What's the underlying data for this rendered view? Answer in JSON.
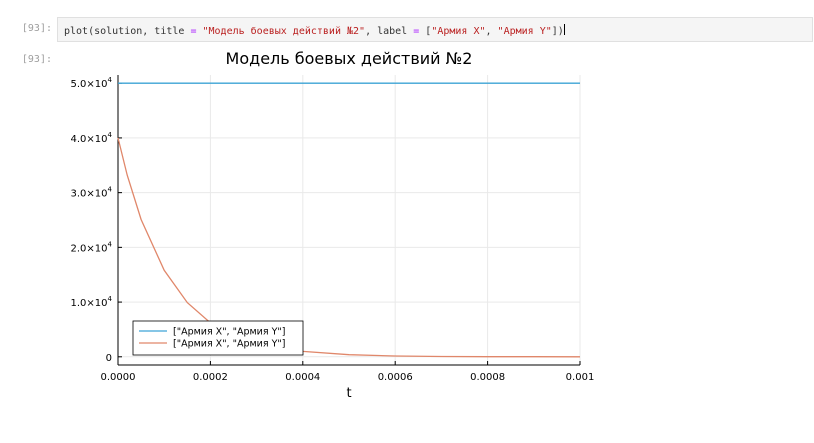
{
  "notebook": {
    "input_prompt": "[93]:",
    "output_prompt": "[93]:",
    "code_tokens": [
      {
        "text": "plot(solution, title ",
        "kind": "plain"
      },
      {
        "text": "=",
        "kind": "op"
      },
      {
        "text": " ",
        "kind": "plain"
      },
      {
        "text": "\"Модель боевых действий №2\"",
        "kind": "str"
      },
      {
        "text": ", label ",
        "kind": "plain"
      },
      {
        "text": "=",
        "kind": "op"
      },
      {
        "text": " [",
        "kind": "plain"
      },
      {
        "text": "\"Армия X\"",
        "kind": "str"
      },
      {
        "text": ", ",
        "kind": "plain"
      },
      {
        "text": "\"Армия Y\"",
        "kind": "str"
      },
      {
        "text": "])",
        "kind": "plain"
      }
    ]
  },
  "chart_data": {
    "type": "line",
    "title": "Модель боевых действий №2",
    "xlabel": "t",
    "ylabel": "",
    "xlim": [
      0,
      0.001
    ],
    "ylim": [
      -1500,
      51500
    ],
    "x_ticks": [
      "0.0000",
      "0.0002",
      "0.0004",
      "0.0006",
      "0.0008",
      "0.001"
    ],
    "x_tick_values": [
      0,
      0.0002,
      0.0004,
      0.0006,
      0.0008,
      0.001
    ],
    "y_tick_values": [
      0,
      10000,
      20000,
      30000,
      40000,
      50000
    ],
    "y_ticks": [
      {
        "mantissa": "0",
        "exp": ""
      },
      {
        "mantissa": "1.0×10",
        "exp": "4"
      },
      {
        "mantissa": "2.0×10",
        "exp": "4"
      },
      {
        "mantissa": "3.0×10",
        "exp": "4"
      },
      {
        "mantissa": "4.0×10",
        "exp": "4"
      },
      {
        "mantissa": "5.0×10",
        "exp": "4"
      }
    ],
    "grid": true,
    "legend_position": "bottom-left",
    "series": [
      {
        "name": "[\"Армия X\", \"Армия Y\"]",
        "color": "#3da4d6",
        "x": [
          0,
          0.0001,
          0.0002,
          0.0003,
          0.0004,
          0.0005,
          0.0006,
          0.0007,
          0.0008,
          0.0009,
          0.001
        ],
        "y": [
          50000,
          50000,
          50000,
          50000,
          50000,
          50000,
          50000,
          50000,
          50000,
          50000,
          50000
        ]
      },
      {
        "name": "[\"Армия X\", \"Армия Y\"]",
        "color": "#e0876a",
        "x": [
          0,
          2e-05,
          5e-05,
          0.0001,
          0.00015,
          0.0002,
          0.00025,
          0.0003,
          0.00035,
          0.0004,
          0.0005,
          0.0006,
          0.0007,
          0.0008,
          0.0009,
          0.001
        ],
        "y": [
          40000,
          33200,
          25100,
          15800,
          9900,
          6200,
          3900,
          2450,
          1550,
          980,
          390,
          150,
          60,
          25,
          10,
          4
        ]
      }
    ]
  }
}
